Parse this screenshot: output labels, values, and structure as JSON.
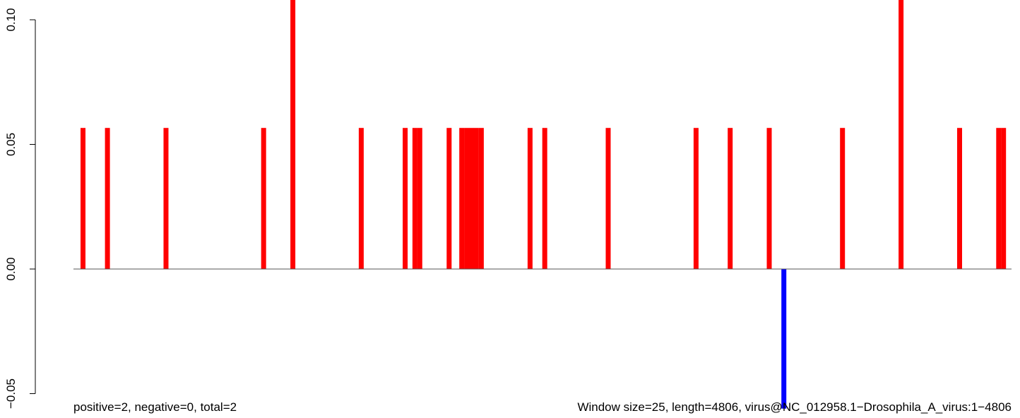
{
  "chart_data": {
    "type": "bar",
    "title": "",
    "xlabel": "",
    "ylabel": "",
    "x_range": [
      1,
      4806
    ],
    "ylim": [
      -0.05,
      0.1
    ],
    "y_ticks": [
      -0.05,
      0.0,
      0.05,
      0.1
    ],
    "y_tick_labels": [
      "−0.05",
      "0.00",
      "0.05",
      "0.10"
    ],
    "baseline": 0,
    "grid": false,
    "window_size": 25,
    "series": [
      {
        "color": "#ff0000",
        "bars": [
          {
            "x": 50,
            "y": 0.0566
          },
          {
            "x": 175,
            "y": 0.0566
          },
          {
            "x": 475,
            "y": 0.0566
          },
          {
            "x": 975,
            "y": 0.0566
          },
          {
            "x": 1125,
            "y": 0.11
          },
          {
            "x": 1475,
            "y": 0.0566
          },
          {
            "x": 1700,
            "y": 0.0566
          },
          {
            "x": 1750,
            "y": 0.0566
          },
          {
            "x": 1775,
            "y": 0.0566
          },
          {
            "x": 1925,
            "y": 0.0566
          },
          {
            "x": 1990,
            "y": 0.0566
          },
          {
            "x": 2015,
            "y": 0.0566
          },
          {
            "x": 2040,
            "y": 0.0566
          },
          {
            "x": 2065,
            "y": 0.0566
          },
          {
            "x": 2090,
            "y": 0.0566
          },
          {
            "x": 2340,
            "y": 0.0566
          },
          {
            "x": 2415,
            "y": 0.0566
          },
          {
            "x": 2740,
            "y": 0.0566
          },
          {
            "x": 3190,
            "y": 0.0566
          },
          {
            "x": 3365,
            "y": 0.0566
          },
          {
            "x": 3565,
            "y": 0.0566
          },
          {
            "x": 3940,
            "y": 0.0566
          },
          {
            "x": 4240,
            "y": 0.11
          },
          {
            "x": 4540,
            "y": 0.0566
          },
          {
            "x": 4740,
            "y": 0.0566
          },
          {
            "x": 4765,
            "y": 0.0566
          }
        ]
      },
      {
        "color": "#0000ff",
        "bars": [
          {
            "x": 3640,
            "y": -0.056
          }
        ]
      }
    ],
    "annotations": {
      "left": "positive=2, negative=0, total=2",
      "right": "Window size=25, length=4806, virus@NC_012958.1−Drosophila_A_virus:1−4806"
    }
  }
}
